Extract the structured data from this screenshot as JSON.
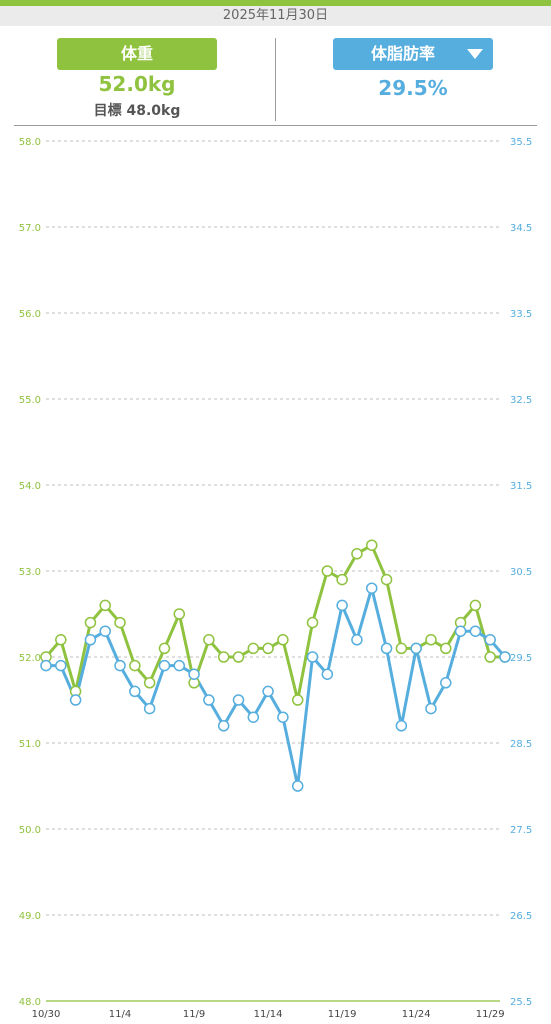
{
  "header": {
    "date": "2025年11月30日",
    "weight_tab_label": "体重",
    "weight_value": "52.0kg",
    "target_label": "目標 48.0kg",
    "fat_tab_label": "体脂肪率",
    "fat_value": "29.5%"
  },
  "colors": {
    "weight": "#8fc23f",
    "fat": "#56aede",
    "grid": "#aaaaaa"
  },
  "chart_data": {
    "type": "line",
    "x": [
      "10/30",
      "10/31",
      "11/1",
      "11/2",
      "11/3",
      "11/4",
      "11/5",
      "11/6",
      "11/7",
      "11/8",
      "11/9",
      "11/10",
      "11/11",
      "11/12",
      "11/13",
      "11/14",
      "11/15",
      "11/16",
      "11/17",
      "11/18",
      "11/19",
      "11/20",
      "11/21",
      "11/22",
      "11/23",
      "11/24",
      "11/25",
      "11/26",
      "11/27",
      "11/28",
      "11/29",
      "11/30"
    ],
    "x_tick_labels": [
      "10/30",
      "11/4",
      "11/9",
      "11/14",
      "11/19",
      "11/24",
      "11/29"
    ],
    "series": [
      {
        "axis": "left",
        "color": "#8fc23f",
        "values": [
          52.0,
          52.2,
          51.6,
          52.4,
          52.6,
          52.4,
          51.9,
          51.7,
          52.1,
          52.5,
          51.7,
          52.2,
          52.0,
          52.0,
          52.1,
          52.1,
          52.2,
          51.5,
          52.4,
          53.0,
          52.9,
          53.2,
          53.3,
          52.9,
          52.1,
          52.1,
          52.2,
          52.1,
          52.4,
          52.6,
          52.0,
          52.0
        ]
      },
      {
        "axis": "right",
        "color": "#56aede",
        "values": [
          29.4,
          29.4,
          29.0,
          29.7,
          29.8,
          29.4,
          29.1,
          28.9,
          29.4,
          29.4,
          29.3,
          29.0,
          28.7,
          29.0,
          28.8,
          29.1,
          28.8,
          28.0,
          29.5,
          29.3,
          30.1,
          29.7,
          30.3,
          29.6,
          28.7,
          29.6,
          28.9,
          29.2,
          29.8,
          29.8,
          29.7,
          29.5
        ]
      }
    ],
    "left_axis": {
      "ylim": [
        48.0,
        58.0
      ],
      "ticks": [
        "58.0",
        "57.0",
        "56.0",
        "55.0",
        "54.0",
        "53.0",
        "52.0",
        "51.0",
        "50.0",
        "49.0",
        "48.0"
      ],
      "color": "#8fc23f"
    },
    "right_axis": {
      "ylim": [
        25.5,
        35.5
      ],
      "ticks": [
        "35.5",
        "34.5",
        "33.5",
        "32.5",
        "31.5",
        "30.5",
        "29.5",
        "28.5",
        "27.5",
        "26.5",
        "25.5"
      ],
      "color": "#56aede"
    },
    "grid": true,
    "legend": "none"
  }
}
